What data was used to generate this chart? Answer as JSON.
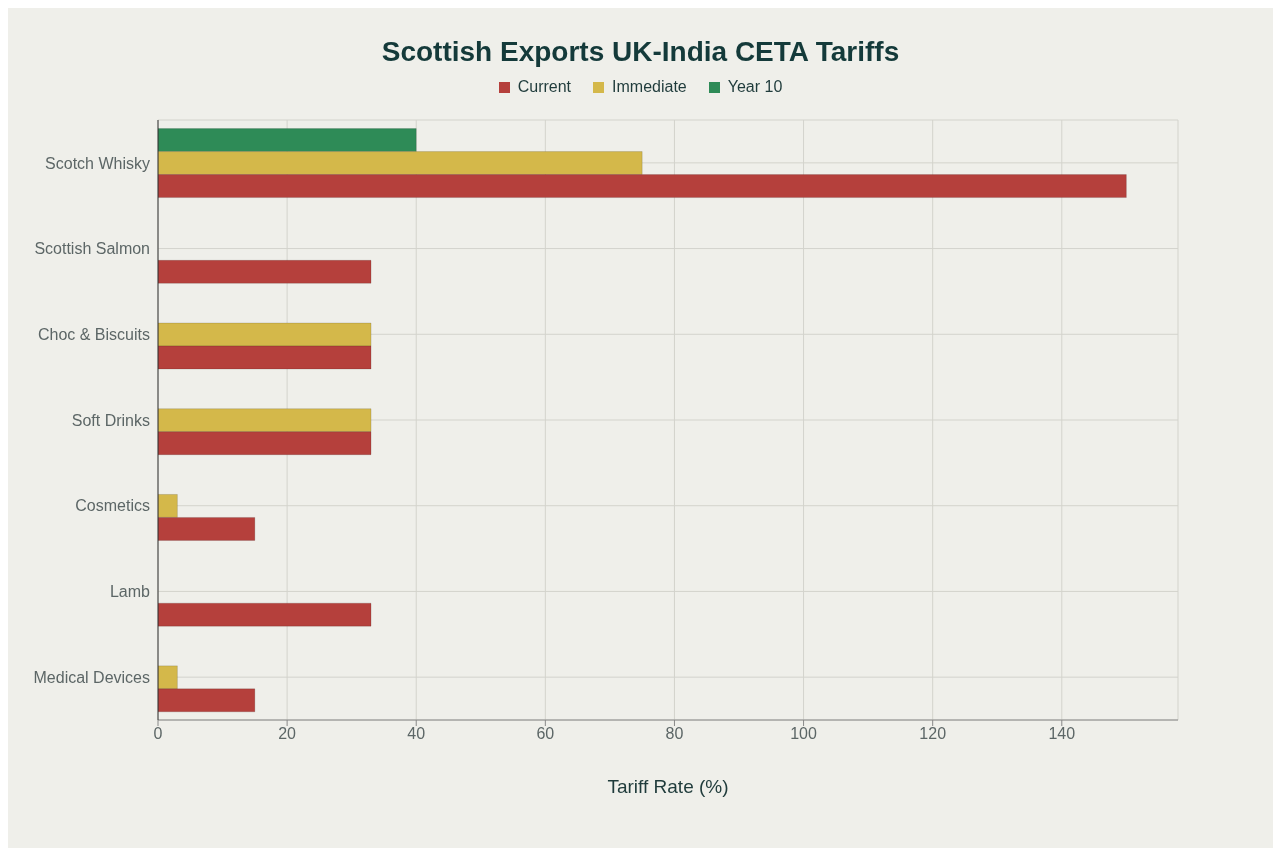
{
  "chart_data": {
    "type": "bar",
    "orientation": "horizontal",
    "title": "Scottish Exports UK-India CETA Tariffs",
    "xlabel": "Tariff Rate (%)",
    "categories": [
      "Scotch Whisky",
      "Scottish Salmon",
      "Choc & Biscuits",
      "Soft Drinks",
      "Cosmetics",
      "Lamb",
      "Medical Devices"
    ],
    "series": [
      {
        "name": "Current",
        "color": "#b5403c",
        "values": [
          150,
          33,
          33,
          33,
          15,
          33,
          15
        ]
      },
      {
        "name": "Immediate",
        "color": "#d4b84a",
        "values": [
          75,
          0,
          33,
          33,
          3,
          0,
          3
        ]
      },
      {
        "name": "Year 10",
        "color": "#2e8b57",
        "values": [
          40,
          0,
          0,
          0,
          0,
          0,
          0
        ]
      }
    ],
    "xlim": [
      0,
      158
    ],
    "xticks": [
      0,
      20,
      40,
      60,
      80,
      100,
      120,
      140
    ],
    "grid": true,
    "legend": "top"
  }
}
